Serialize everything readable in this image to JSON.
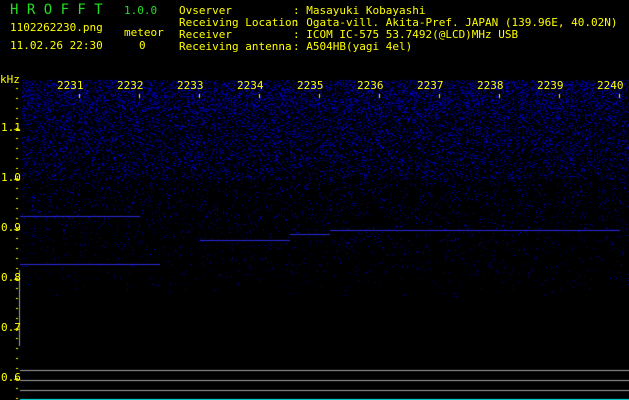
{
  "app": {
    "title": "H R O F F T",
    "version": "1.0.0"
  },
  "file": {
    "name": "1102262230.png",
    "datetime": "11.02.26 22:30"
  },
  "meteor": {
    "label": "meteor",
    "count": "0"
  },
  "info": [
    {
      "label": "Ovserver",
      "value": ": Masayuki Kobayashi"
    },
    {
      "label": "Receiving Location",
      "value": ": Ogata-vill. Akita-Pref. JAPAN (139.96E, 40.02N)"
    },
    {
      "label": "Receiver",
      "value": ": ICOM IC-575 53.7492(@LCD)MHz USB"
    },
    {
      "label": "Receiving antenna",
      "value": ": A504HB(yagi 4el)"
    }
  ],
  "axis": {
    "unit": "kHz",
    "x_ticks": [
      "2231",
      "2232",
      "2233",
      "2234",
      "2235",
      "2236",
      "2237",
      "2238",
      "2239",
      "2240"
    ],
    "y_ticks": [
      "1.1",
      "1.0",
      "0.9",
      "0.8",
      "0.7",
      "0.6"
    ]
  },
  "colors": {
    "text": "#ffff00",
    "title": "#22dd22",
    "signal": "#2020ff",
    "grid": "#a0a0a0",
    "baseline": "#00e0e0"
  }
}
